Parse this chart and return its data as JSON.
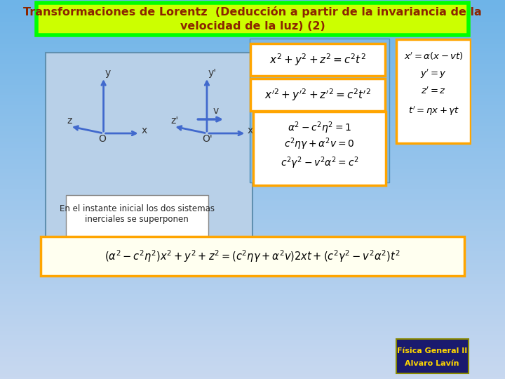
{
  "title_line1": "Transformaciones de Lorentz  (Deducción a partir de la invariancia de la",
  "title_line2": "velocidad de la luz) (2)",
  "title_color": "#8B2500",
  "title_bg": "#CCFF00",
  "title_border": "#00FF00",
  "bg_color_top": "#6EB4E8",
  "bg_color_bottom": "#C8D8F0",
  "eq1": "$x^2 + y^2 + z^2 = c^2t^2$",
  "eq2": "$x'^2 + y'^2 + z'^2 = c^2t'^2$",
  "eq3_line1": "$x' = \\alpha(x - vt)$",
  "eq3_line2": "$y' = y$",
  "eq3_line3": "$z' = z$",
  "eq3_line4": "$t' = \\eta x + \\gamma t$",
  "eq4_line1": "$\\alpha^2 - c^2\\eta^2 = 1$",
  "eq4_line2": "$c^2\\eta\\gamma + \\alpha^2 v = 0$",
  "eq4_line3": "$c^2\\gamma^2 - v^2\\alpha^2 = c^2$",
  "eq5": "$(\\alpha^2 - c^2\\eta^2)x^2 + y^2 + z^2 = (c^2\\eta\\gamma + \\alpha^2 v)2xt + (c^2\\gamma^2 - v^2\\alpha^2)t^2$",
  "note": "En el instante inicial los dos sistemas\ninerciales se superponen",
  "badge_line1": "Física General II",
  "badge_line2": "Alvaro Lavín",
  "badge_bg": "#1a1a6e",
  "badge_text": "#FFD700",
  "orange_border": "#FFA500",
  "white_bg": "#FFFFFF"
}
